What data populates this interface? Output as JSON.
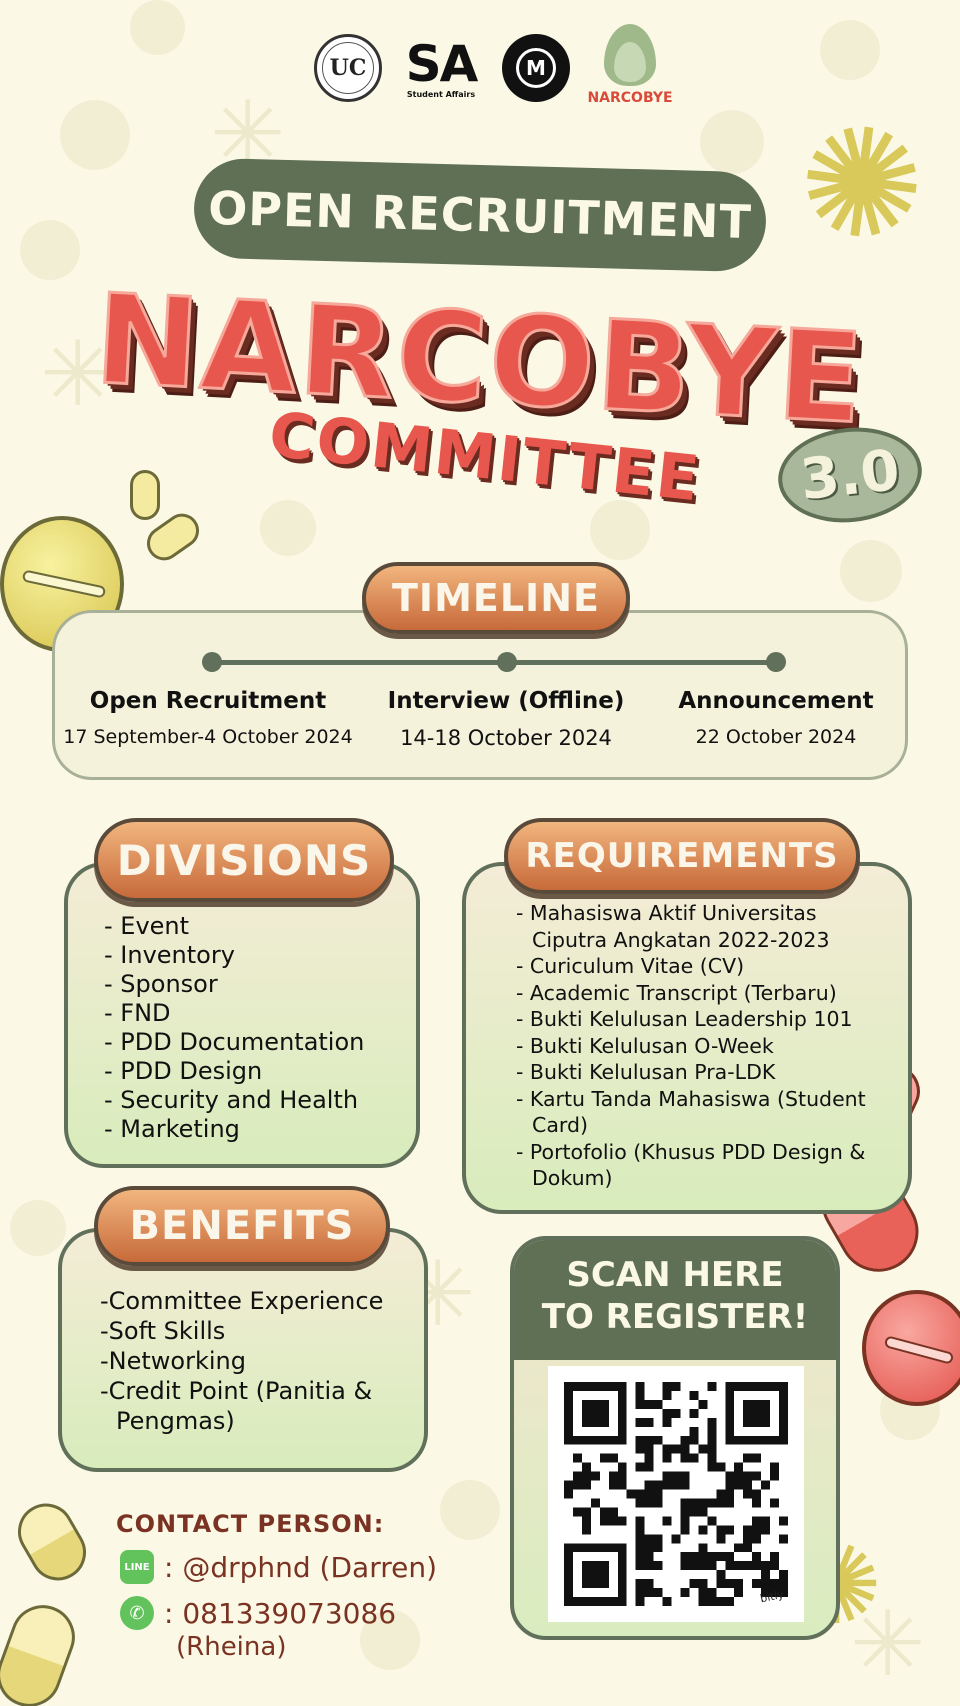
{
  "colors": {
    "background": "#fbf9e6",
    "dark_green": "#5f7054",
    "title_red": "#e8574d",
    "pill_orange": "#d98150",
    "contact_brown": "#7a3322"
  },
  "logos": {
    "uc_text": "UC",
    "sa_text": "SA",
    "sa_caption": "Student Affairs",
    "mentoring_text": "M",
    "narcobye_text": "NARCOBYE"
  },
  "banner": "OPEN RECRUITMENT",
  "title": {
    "main": "NARCOBYE",
    "sub": "COMMITTEE",
    "version": "3.0"
  },
  "timeline": {
    "heading": "TIMELINE",
    "stages": [
      {
        "label": "Open Recruitment",
        "date": "17 September-4 October 2024"
      },
      {
        "label": "Interview (Offline)",
        "date": "14-18 October 2024"
      },
      {
        "label": "Announcement",
        "date": "22 October 2024"
      }
    ]
  },
  "divisions": {
    "heading": "DIVISIONS",
    "items": [
      "- Event",
      "- Inventory",
      "- Sponsor",
      "- FND",
      "- PDD Documentation",
      "- PDD Design",
      "- Security and Health",
      "- Marketing"
    ]
  },
  "requirements": {
    "heading": "REQUIREMENTS",
    "items": [
      "- Mahasiswa Aktif Universitas Ciputra Angkatan 2022-2023",
      "- Curiculum Vitae (CV)",
      "- Academic Transcript (Terbaru)",
      "- Bukti Kelulusan Leadership 101",
      "- Bukti Kelulusan O-Week",
      "- Bukti Kelulusan Pra-LDK",
      "- Kartu Tanda Mahasiswa (Student Card)",
      "- Portofolio (Khusus PDD Design & Dokum)"
    ]
  },
  "benefits": {
    "heading": "BENEFITS",
    "items": [
      "-Committee Experience",
      "-Soft Skills",
      "-Networking",
      "-Credit Point (Panitia & Pengmas)"
    ]
  },
  "register": {
    "line1": "SCAN HERE",
    "line2": "TO REGISTER!",
    "qr_caption": "bitly"
  },
  "contact": {
    "title": "CONTACT PERSON:",
    "line_icon": "LINE",
    "line_text": ": @drphnd (Darren)",
    "whatsapp_icon": "whatsapp-icon",
    "whatsapp_text": ": 081339073086",
    "whatsapp_name": "(Rheina)"
  }
}
